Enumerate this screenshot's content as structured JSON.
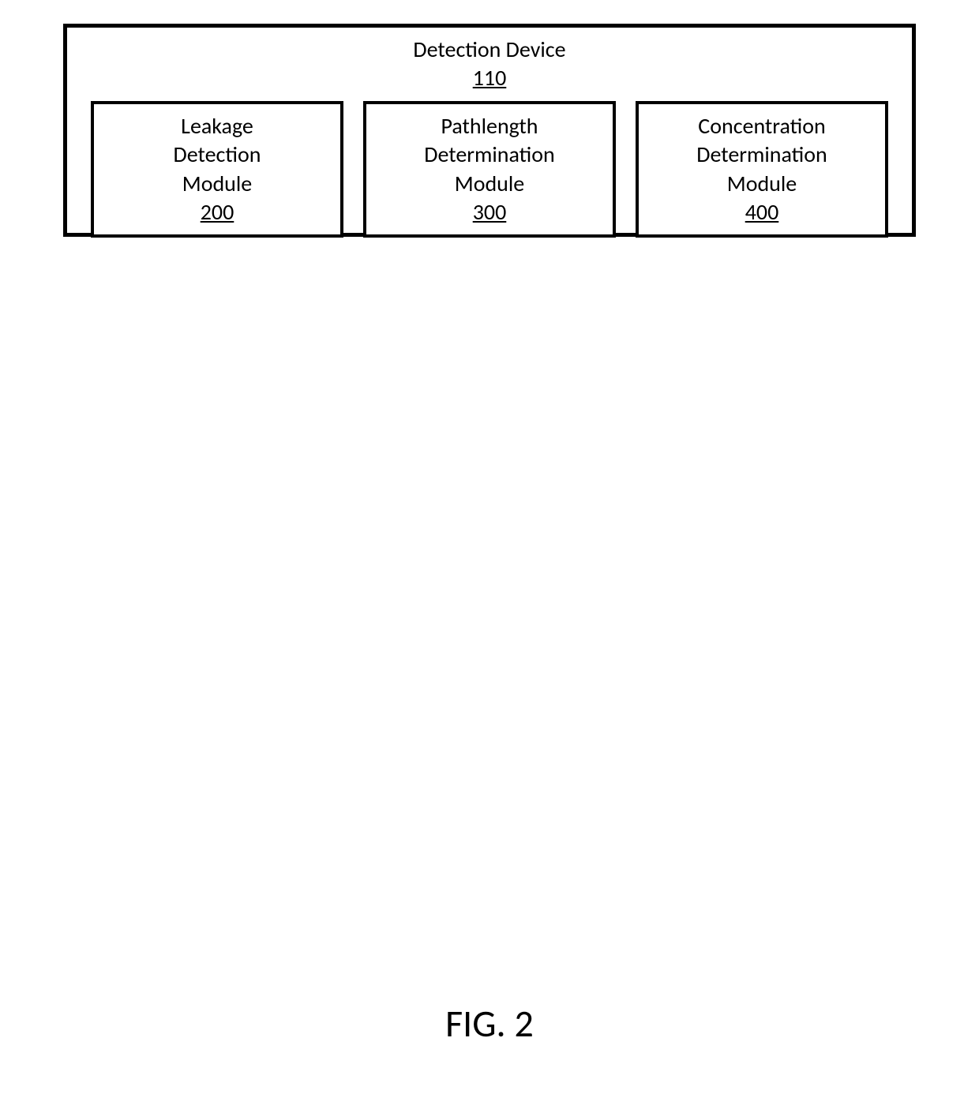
{
  "diagram": {
    "type": "block-diagram",
    "outer": {
      "title": "Detection Device",
      "refNumber": "110",
      "borderColor": "#000000",
      "borderWidth": 5,
      "backgroundColor": "#ffffff"
    },
    "modules": [
      {
        "line1": "Leakage",
        "line2": "Detection",
        "line3": "Module",
        "refNumber": "200"
      },
      {
        "line1": "Pathlength",
        "line2": "Determination",
        "line3": "Module",
        "refNumber": "300"
      },
      {
        "line1": "Concentration",
        "line2": "Determination",
        "line3": "Module",
        "refNumber": "400"
      }
    ],
    "moduleStyle": {
      "borderColor": "#000000",
      "borderWidth": 4,
      "backgroundColor": "#ffffff",
      "fontSize": 28
    },
    "figureLabel": "FIG. 2",
    "figureLabelFontSize": 48,
    "fontFamily": "Calibri",
    "textColor": "#000000"
  }
}
